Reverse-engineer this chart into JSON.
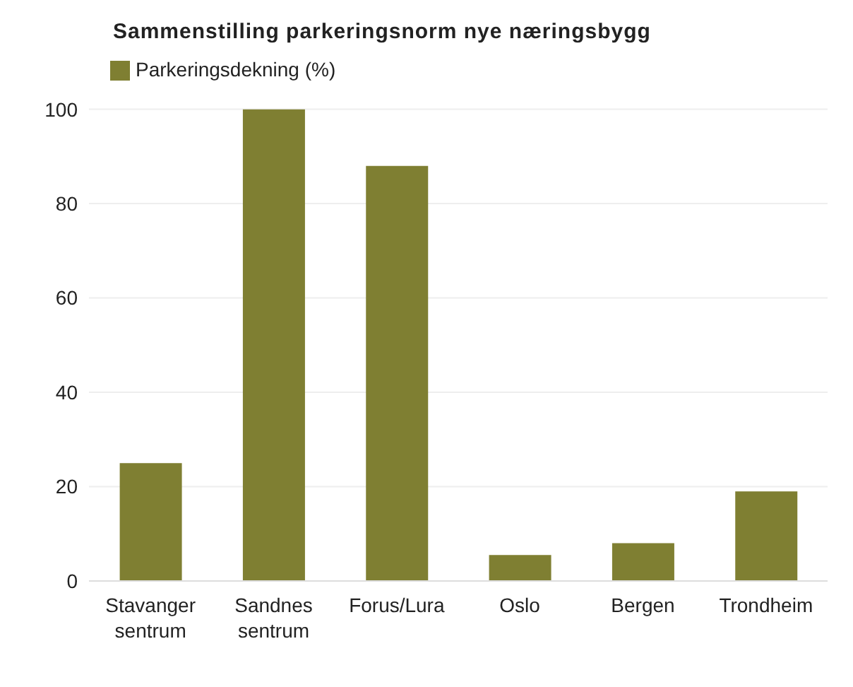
{
  "chart_data": {
    "type": "bar",
    "title": "Sammenstilling parkeringsnorm nye næringsbygg",
    "categories": [
      "Stavanger sentrum",
      "Sandnes sentrum",
      "Forus/Lura",
      "Oslo",
      "Bergen",
      "Trondheim"
    ],
    "series": [
      {
        "name": "Parkeringsdekning (%)",
        "color": "#7f7f32",
        "values": [
          25,
          100,
          88,
          5.5,
          8,
          19
        ]
      }
    ],
    "ylim": [
      0,
      100
    ],
    "yticks": [
      0,
      20,
      40,
      60,
      80,
      100
    ],
    "grid": "y",
    "legend": "top left"
  }
}
